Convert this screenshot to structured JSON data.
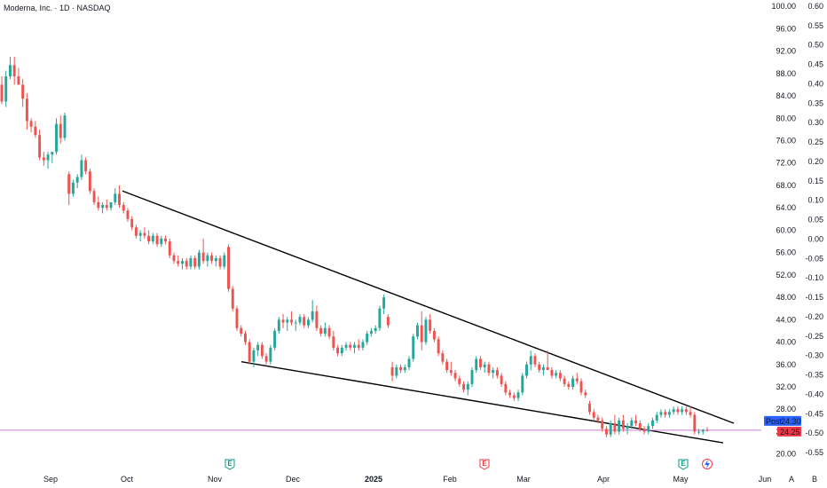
{
  "header": {
    "title": "Moderna, Inc. · 1D · NASDAQ"
  },
  "colors": {
    "up": "#26a69a",
    "down": "#ef5350",
    "trendline": "#000000",
    "price_line": "#c77dd6",
    "post_label_bg": "#2962ff",
    "last_label_bg": "#f23645",
    "earnings": "#089981",
    "dividend": "#f23645",
    "axis_text": "#131722"
  },
  "chart_data": {
    "type": "candlestick",
    "title": "",
    "x_ticks": [
      "Sep",
      "Oct",
      "Nov",
      "Dec",
      "2025",
      "Feb",
      "Mar",
      "Apr",
      "May",
      "Jun"
    ],
    "y_axis_left_ticks": [
      "100.00",
      "96.00",
      "92.00",
      "88.00",
      "84.00",
      "80.00",
      "76.00",
      "72.00",
      "68.00",
      "64.00",
      "60.00",
      "56.00",
      "52.00",
      "48.00",
      "44.00",
      "40.00",
      "36.00",
      "32.00",
      "28.00",
      "24.00",
      "20.00"
    ],
    "y_axis_right_ticks": [
      "0.60",
      "0.55",
      "0.50",
      "0.45",
      "0.40",
      "0.35",
      "0.30",
      "0.25",
      "0.20",
      "0.15",
      "0.10",
      "0.05",
      "0.00",
      "-0.05",
      "-0.10",
      "-0.15",
      "-0.20",
      "-0.25",
      "-0.30",
      "-0.35",
      "-0.40",
      "-0.45",
      "-0.50",
      "-0.55"
    ],
    "ylim": [
      19.0,
      100.5
    ],
    "price_labels": {
      "post_label": "Post",
      "post_value": "24.30",
      "last_value": "24.25"
    },
    "event_markers": [
      {
        "kind": "earnings",
        "label": "E",
        "date": "Nov"
      },
      {
        "kind": "dividend",
        "label": "E",
        "date": "Jan-end"
      },
      {
        "kind": "earnings",
        "label": "E",
        "date": "May"
      }
    ],
    "bottom_buttons": [
      "A",
      "B"
    ],
    "trendlines": [
      {
        "name": "upper",
        "from_price": 67.0,
        "to_price": 25.5
      },
      {
        "name": "lower",
        "from_price": 36.5,
        "to_price": 22.0
      }
    ],
    "candles": [
      {
        "o": 86.0,
        "h": 87.5,
        "l": 82.5,
        "c": 83.0
      },
      {
        "o": 83.0,
        "h": 88.5,
        "l": 82.0,
        "c": 87.5
      },
      {
        "o": 87.5,
        "h": 91.0,
        "l": 87.0,
        "c": 89.5
      },
      {
        "o": 89.5,
        "h": 91.0,
        "l": 86.0,
        "c": 87.5
      },
      {
        "o": 87.5,
        "h": 89.0,
        "l": 86.0,
        "c": 86.0
      },
      {
        "o": 86.0,
        "h": 87.0,
        "l": 82.0,
        "c": 83.5
      },
      {
        "o": 83.5,
        "h": 84.5,
        "l": 78.0,
        "c": 79.5
      },
      {
        "o": 79.5,
        "h": 80.0,
        "l": 77.5,
        "c": 78.5
      },
      {
        "o": 78.5,
        "h": 79.5,
        "l": 76.5,
        "c": 77.0
      },
      {
        "o": 77.0,
        "h": 78.0,
        "l": 72.5,
        "c": 73.0
      },
      {
        "o": 73.0,
        "h": 74.0,
        "l": 71.5,
        "c": 72.5
      },
      {
        "o": 72.5,
        "h": 74.0,
        "l": 71.0,
        "c": 73.5
      },
      {
        "o": 73.5,
        "h": 74.0,
        "l": 72.0,
        "c": 74.0
      },
      {
        "o": 74.0,
        "h": 80.0,
        "l": 73.5,
        "c": 79.0
      },
      {
        "o": 79.0,
        "h": 80.5,
        "l": 75.5,
        "c": 76.5
      },
      {
        "o": 76.5,
        "h": 81.0,
        "l": 76.0,
        "c": 80.5
      },
      {
        "o": 70.0,
        "h": 70.5,
        "l": 64.5,
        "c": 66.5
      },
      {
        "o": 66.5,
        "h": 69.0,
        "l": 66.0,
        "c": 68.5
      },
      {
        "o": 68.5,
        "h": 70.0,
        "l": 67.5,
        "c": 69.5
      },
      {
        "o": 69.5,
        "h": 73.5,
        "l": 69.0,
        "c": 72.5
      },
      {
        "o": 72.5,
        "h": 73.0,
        "l": 70.0,
        "c": 70.5
      },
      {
        "o": 70.5,
        "h": 71.0,
        "l": 66.5,
        "c": 67.0
      },
      {
        "o": 67.0,
        "h": 67.5,
        "l": 64.5,
        "c": 65.0
      },
      {
        "o": 65.0,
        "h": 66.0,
        "l": 63.5,
        "c": 64.0
      },
      {
        "o": 64.0,
        "h": 65.0,
        "l": 63.0,
        "c": 64.5
      },
      {
        "o": 64.5,
        "h": 65.5,
        "l": 63.5,
        "c": 64.0
      },
      {
        "o": 64.0,
        "h": 65.0,
        "l": 63.5,
        "c": 65.0
      },
      {
        "o": 65.0,
        "h": 67.5,
        "l": 64.5,
        "c": 66.5
      },
      {
        "o": 66.5,
        "h": 68.0,
        "l": 64.0,
        "c": 64.5
      },
      {
        "o": 64.5,
        "h": 65.0,
        "l": 63.0,
        "c": 63.5
      },
      {
        "o": 63.5,
        "h": 64.0,
        "l": 61.5,
        "c": 62.0
      },
      {
        "o": 62.0,
        "h": 62.5,
        "l": 60.0,
        "c": 60.5
      },
      {
        "o": 60.5,
        "h": 61.0,
        "l": 58.5,
        "c": 59.0
      },
      {
        "o": 59.0,
        "h": 60.0,
        "l": 58.0,
        "c": 59.5
      },
      {
        "o": 59.5,
        "h": 60.5,
        "l": 58.5,
        "c": 59.0
      },
      {
        "o": 59.0,
        "h": 60.0,
        "l": 57.5,
        "c": 58.0
      },
      {
        "o": 58.0,
        "h": 59.5,
        "l": 57.5,
        "c": 59.0
      },
      {
        "o": 59.0,
        "h": 59.5,
        "l": 57.0,
        "c": 57.5
      },
      {
        "o": 57.5,
        "h": 59.0,
        "l": 57.0,
        "c": 58.5
      },
      {
        "o": 58.5,
        "h": 59.0,
        "l": 57.5,
        "c": 58.0
      },
      {
        "o": 58.0,
        "h": 58.5,
        "l": 55.0,
        "c": 55.5
      },
      {
        "o": 55.5,
        "h": 56.0,
        "l": 54.0,
        "c": 54.5
      },
      {
        "o": 54.5,
        "h": 55.5,
        "l": 53.5,
        "c": 54.0
      },
      {
        "o": 54.0,
        "h": 55.0,
        "l": 53.0,
        "c": 54.5
      },
      {
        "o": 54.5,
        "h": 55.0,
        "l": 53.0,
        "c": 53.5
      },
      {
        "o": 53.5,
        "h": 55.5,
        "l": 53.0,
        "c": 55.0
      },
      {
        "o": 55.0,
        "h": 55.5,
        "l": 53.0,
        "c": 53.5
      },
      {
        "o": 53.5,
        "h": 56.5,
        "l": 53.0,
        "c": 56.0
      },
      {
        "o": 56.0,
        "h": 58.5,
        "l": 54.0,
        "c": 54.5
      },
      {
        "o": 54.5,
        "h": 56.0,
        "l": 53.5,
        "c": 55.5
      },
      {
        "o": 55.5,
        "h": 56.0,
        "l": 54.0,
        "c": 54.5
      },
      {
        "o": 54.5,
        "h": 55.5,
        "l": 53.5,
        "c": 55.0
      },
      {
        "o": 55.0,
        "h": 55.5,
        "l": 53.0,
        "c": 53.5
      },
      {
        "o": 53.5,
        "h": 56.0,
        "l": 53.0,
        "c": 55.5
      },
      {
        "o": 57.0,
        "h": 57.5,
        "l": 49.0,
        "c": 49.5
      },
      {
        "o": 49.5,
        "h": 50.0,
        "l": 45.5,
        "c": 46.0
      },
      {
        "o": 46.0,
        "h": 46.5,
        "l": 42.0,
        "c": 42.5
      },
      {
        "o": 42.5,
        "h": 43.0,
        "l": 41.0,
        "c": 41.5
      },
      {
        "o": 41.5,
        "h": 42.0,
        "l": 39.5,
        "c": 40.0
      },
      {
        "o": 40.0,
        "h": 40.5,
        "l": 36.0,
        "c": 36.5
      },
      {
        "o": 36.5,
        "h": 39.0,
        "l": 35.5,
        "c": 38.5
      },
      {
        "o": 38.5,
        "h": 40.0,
        "l": 37.5,
        "c": 39.5
      },
      {
        "o": 39.5,
        "h": 40.0,
        "l": 37.0,
        "c": 37.5
      },
      {
        "o": 37.5,
        "h": 38.0,
        "l": 36.0,
        "c": 36.5
      },
      {
        "o": 36.5,
        "h": 39.5,
        "l": 36.0,
        "c": 39.0
      },
      {
        "o": 39.0,
        "h": 42.5,
        "l": 38.5,
        "c": 42.0
      },
      {
        "o": 42.0,
        "h": 44.5,
        "l": 41.5,
        "c": 44.0
      },
      {
        "o": 44.0,
        "h": 45.0,
        "l": 42.5,
        "c": 43.5
      },
      {
        "o": 43.5,
        "h": 44.5,
        "l": 42.0,
        "c": 44.0
      },
      {
        "o": 44.0,
        "h": 45.5,
        "l": 43.0,
        "c": 43.5
      },
      {
        "o": 43.5,
        "h": 44.0,
        "l": 42.0,
        "c": 43.5
      },
      {
        "o": 43.5,
        "h": 45.0,
        "l": 43.0,
        "c": 44.5
      },
      {
        "o": 44.5,
        "h": 45.0,
        "l": 42.5,
        "c": 43.0
      },
      {
        "o": 43.0,
        "h": 44.5,
        "l": 42.5,
        "c": 44.0
      },
      {
        "o": 44.0,
        "h": 47.5,
        "l": 43.5,
        "c": 45.5
      },
      {
        "o": 45.5,
        "h": 46.5,
        "l": 42.0,
        "c": 42.5
      },
      {
        "o": 42.5,
        "h": 43.0,
        "l": 41.0,
        "c": 41.5
      },
      {
        "o": 41.5,
        "h": 43.5,
        "l": 41.0,
        "c": 42.5
      },
      {
        "o": 42.5,
        "h": 43.0,
        "l": 40.5,
        "c": 41.0
      },
      {
        "o": 41.0,
        "h": 42.0,
        "l": 38.5,
        "c": 39.0
      },
      {
        "o": 39.0,
        "h": 39.5,
        "l": 37.5,
        "c": 38.0
      },
      {
        "o": 38.0,
        "h": 39.5,
        "l": 37.5,
        "c": 39.0
      },
      {
        "o": 39.0,
        "h": 40.0,
        "l": 38.5,
        "c": 39.5
      },
      {
        "o": 39.5,
        "h": 40.0,
        "l": 38.5,
        "c": 39.0
      },
      {
        "o": 39.0,
        "h": 40.0,
        "l": 38.0,
        "c": 39.5
      },
      {
        "o": 39.5,
        "h": 40.5,
        "l": 38.5,
        "c": 39.0
      },
      {
        "o": 39.0,
        "h": 40.5,
        "l": 38.5,
        "c": 40.0
      },
      {
        "o": 40.0,
        "h": 42.0,
        "l": 39.5,
        "c": 41.5
      },
      {
        "o": 41.5,
        "h": 42.5,
        "l": 41.0,
        "c": 42.0
      },
      {
        "o": 42.0,
        "h": 43.0,
        "l": 41.5,
        "c": 42.5
      },
      {
        "o": 42.5,
        "h": 46.5,
        "l": 42.0,
        "c": 46.0
      },
      {
        "o": 46.0,
        "h": 48.5,
        "l": 45.0,
        "c": 48.0
      },
      {
        "o": 44.5,
        "h": 45.0,
        "l": 42.5,
        "c": 43.0
      },
      {
        "o": 35.5,
        "h": 36.5,
        "l": 33.0,
        "c": 34.0
      },
      {
        "o": 34.0,
        "h": 36.0,
        "l": 33.5,
        "c": 35.5
      },
      {
        "o": 35.5,
        "h": 36.0,
        "l": 34.5,
        "c": 35.0
      },
      {
        "o": 35.0,
        "h": 36.0,
        "l": 34.5,
        "c": 35.5
      },
      {
        "o": 35.5,
        "h": 37.5,
        "l": 35.0,
        "c": 37.0
      },
      {
        "o": 37.0,
        "h": 41.5,
        "l": 36.5,
        "c": 41.0
      },
      {
        "o": 41.0,
        "h": 43.5,
        "l": 40.5,
        "c": 43.0
      },
      {
        "o": 43.0,
        "h": 45.5,
        "l": 38.5,
        "c": 40.0
      },
      {
        "o": 40.0,
        "h": 44.5,
        "l": 39.5,
        "c": 44.0
      },
      {
        "o": 44.0,
        "h": 45.0,
        "l": 41.5,
        "c": 42.0
      },
      {
        "o": 42.0,
        "h": 42.5,
        "l": 40.0,
        "c": 40.5
      },
      {
        "o": 40.5,
        "h": 41.0,
        "l": 37.5,
        "c": 38.0
      },
      {
        "o": 38.0,
        "h": 38.5,
        "l": 36.0,
        "c": 36.5
      },
      {
        "o": 36.5,
        "h": 37.0,
        "l": 34.5,
        "c": 35.0
      },
      {
        "o": 35.0,
        "h": 36.5,
        "l": 34.0,
        "c": 34.5
      },
      {
        "o": 34.5,
        "h": 35.0,
        "l": 33.0,
        "c": 33.5
      },
      {
        "o": 33.5,
        "h": 34.0,
        "l": 32.0,
        "c": 32.5
      },
      {
        "o": 32.5,
        "h": 33.0,
        "l": 31.0,
        "c": 31.5
      },
      {
        "o": 31.5,
        "h": 33.0,
        "l": 30.5,
        "c": 32.5
      },
      {
        "o": 32.5,
        "h": 35.5,
        "l": 32.0,
        "c": 35.0
      },
      {
        "o": 35.0,
        "h": 37.5,
        "l": 34.5,
        "c": 37.0
      },
      {
        "o": 37.0,
        "h": 37.5,
        "l": 35.0,
        "c": 35.5
      },
      {
        "o": 35.5,
        "h": 36.5,
        "l": 34.5,
        "c": 36.0
      },
      {
        "o": 36.0,
        "h": 36.5,
        "l": 34.0,
        "c": 34.5
      },
      {
        "o": 34.5,
        "h": 35.5,
        "l": 33.5,
        "c": 35.0
      },
      {
        "o": 35.0,
        "h": 35.5,
        "l": 33.5,
        "c": 34.0
      },
      {
        "o": 34.0,
        "h": 34.5,
        "l": 32.0,
        "c": 32.5
      },
      {
        "o": 32.5,
        "h": 33.0,
        "l": 30.5,
        "c": 31.0
      },
      {
        "o": 31.0,
        "h": 31.5,
        "l": 30.0,
        "c": 30.5
      },
      {
        "o": 30.5,
        "h": 31.0,
        "l": 29.5,
        "c": 30.0
      },
      {
        "o": 30.0,
        "h": 31.5,
        "l": 29.5,
        "c": 31.0
      },
      {
        "o": 31.0,
        "h": 34.5,
        "l": 30.5,
        "c": 34.0
      },
      {
        "o": 34.0,
        "h": 36.5,
        "l": 33.5,
        "c": 36.0
      },
      {
        "o": 36.0,
        "h": 38.5,
        "l": 35.0,
        "c": 37.5
      },
      {
        "o": 37.5,
        "h": 38.0,
        "l": 35.5,
        "c": 36.0
      },
      {
        "o": 36.0,
        "h": 36.5,
        "l": 34.5,
        "c": 35.0
      },
      {
        "o": 35.0,
        "h": 36.0,
        "l": 34.0,
        "c": 35.5
      },
      {
        "o": 35.5,
        "h": 38.5,
        "l": 35.0,
        "c": 35.0
      },
      {
        "o": 35.0,
        "h": 35.5,
        "l": 33.5,
        "c": 34.0
      },
      {
        "o": 34.0,
        "h": 35.0,
        "l": 33.5,
        "c": 34.5
      },
      {
        "o": 34.5,
        "h": 35.0,
        "l": 33.0,
        "c": 33.5
      },
      {
        "o": 33.5,
        "h": 34.0,
        "l": 32.0,
        "c": 32.5
      },
      {
        "o": 32.5,
        "h": 33.0,
        "l": 31.5,
        "c": 32.0
      },
      {
        "o": 32.0,
        "h": 34.0,
        "l": 31.5,
        "c": 33.5
      },
      {
        "o": 33.5,
        "h": 34.5,
        "l": 32.5,
        "c": 33.0
      },
      {
        "o": 33.0,
        "h": 33.5,
        "l": 30.5,
        "c": 31.0
      },
      {
        "o": 31.0,
        "h": 31.5,
        "l": 30.0,
        "c": 30.5
      },
      {
        "o": 29.0,
        "h": 29.5,
        "l": 27.0,
        "c": 27.5
      },
      {
        "o": 27.5,
        "h": 28.0,
        "l": 26.0,
        "c": 26.5
      },
      {
        "o": 26.5,
        "h": 27.0,
        "l": 25.5,
        "c": 26.0
      },
      {
        "o": 26.0,
        "h": 26.5,
        "l": 24.0,
        "c": 24.5
      },
      {
        "o": 24.5,
        "h": 25.0,
        "l": 23.0,
        "c": 23.5
      },
      {
        "o": 23.5,
        "h": 26.0,
        "l": 23.0,
        "c": 25.5
      },
      {
        "o": 25.5,
        "h": 27.0,
        "l": 23.5,
        "c": 24.0
      },
      {
        "o": 24.0,
        "h": 26.5,
        "l": 23.5,
        "c": 26.0
      },
      {
        "o": 26.0,
        "h": 27.0,
        "l": 24.0,
        "c": 24.5
      },
      {
        "o": 24.5,
        "h": 25.5,
        "l": 23.5,
        "c": 25.0
      },
      {
        "o": 25.0,
        "h": 26.5,
        "l": 24.5,
        "c": 26.0
      },
      {
        "o": 26.0,
        "h": 27.0,
        "l": 25.0,
        "c": 25.5
      },
      {
        "o": 25.5,
        "h": 26.0,
        "l": 24.0,
        "c": 24.5
      },
      {
        "o": 24.5,
        "h": 25.0,
        "l": 23.5,
        "c": 24.0
      },
      {
        "o": 24.0,
        "h": 25.5,
        "l": 23.5,
        "c": 25.0
      },
      {
        "o": 25.0,
        "h": 26.5,
        "l": 24.5,
        "c": 26.0
      },
      {
        "o": 26.0,
        "h": 27.5,
        "l": 25.5,
        "c": 27.0
      },
      {
        "o": 27.0,
        "h": 28.0,
        "l": 26.5,
        "c": 27.5
      },
      {
        "o": 27.5,
        "h": 28.0,
        "l": 26.5,
        "c": 27.0
      },
      {
        "o": 27.0,
        "h": 28.0,
        "l": 26.5,
        "c": 27.5
      },
      {
        "o": 27.5,
        "h": 28.5,
        "l": 27.0,
        "c": 28.0
      },
      {
        "o": 28.0,
        "h": 28.5,
        "l": 27.0,
        "c": 27.5
      },
      {
        "o": 27.5,
        "h": 28.5,
        "l": 27.0,
        "c": 28.0
      },
      {
        "o": 28.0,
        "h": 28.5,
        "l": 27.0,
        "c": 27.5
      },
      {
        "o": 27.5,
        "h": 28.5,
        "l": 26.5,
        "c": 27.0
      },
      {
        "o": 27.0,
        "h": 27.5,
        "l": 23.5,
        "c": 24.0
      },
      {
        "o": 24.0,
        "h": 24.5,
        "l": 23.5,
        "c": 24.0
      },
      {
        "o": 24.0,
        "h": 24.5,
        "l": 23.5,
        "c": 24.3
      },
      {
        "o": 24.3,
        "h": 24.8,
        "l": 24.0,
        "c": 24.25
      }
    ]
  }
}
